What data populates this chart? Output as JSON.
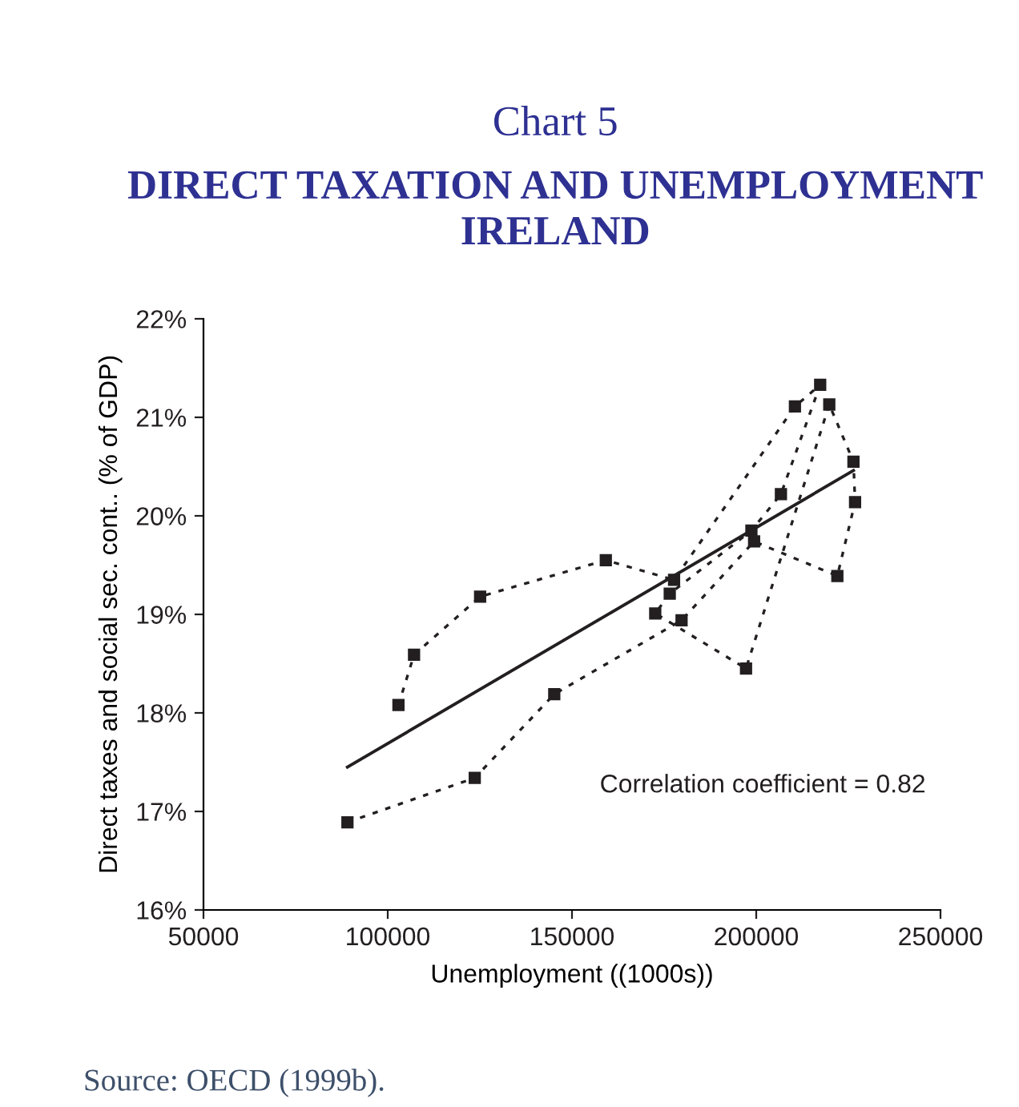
{
  "chart_data": {
    "type": "line",
    "title": "Chart 5",
    "subtitle": "DIRECT TAXATION AND UNEMPLOYMENT\nIRELAND",
    "xlabel": "Unemployment ((1000s))",
    "ylabel": "Direct taxes and social sec. cont.. (% of GDP)",
    "series": [
      {
        "color": "#231f20",
        "marker": "square",
        "line_style": "dotted",
        "x": [
          89067,
          123615,
          145190,
          179735,
          199420,
          222010,
          226820,
          226380,
          219820,
          197230,
          172590,
          176530,
          198690,
          206700,
          217350,
          210500,
          177700,
          159180,
          125070,
          107140,
          102910
        ],
        "values": [
          16.89,
          17.34,
          18.19,
          18.94,
          19.74,
          19.39,
          20.14,
          20.55,
          21.13,
          18.45,
          19.01,
          19.21,
          19.85,
          20.22,
          21.33,
          21.11,
          19.35,
          19.55,
          19.18,
          18.59,
          18.08
        ]
      },
      {
        "color": "#231f20",
        "marker": "none",
        "line_style": "solid",
        "x": [
          89067,
          226380
        ],
        "values": [
          17.45,
          20.46
        ]
      }
    ],
    "xlim": [
      50000,
      250000
    ],
    "xticks": [
      50000,
      100000,
      150000,
      200000,
      250000
    ],
    "ylim": [
      16,
      22
    ],
    "yticks": [
      {
        "value": 16,
        "label": "16%"
      },
      {
        "value": 17,
        "label": "17%"
      },
      {
        "value": 18,
        "label": "18%"
      },
      {
        "value": 19,
        "label": "19%"
      },
      {
        "value": 20,
        "label": "20%"
      },
      {
        "value": 21,
        "label": "21%"
      },
      {
        "value": 22,
        "label": "22%"
      }
    ],
    "grid": false,
    "annotations": [
      "Correlation coefficient = 0.82",
      "Source: OECD (1999b)."
    ]
  }
}
